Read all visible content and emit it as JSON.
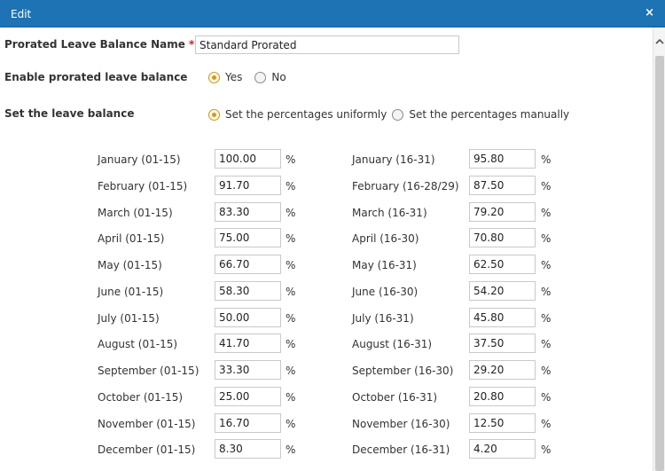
{
  "dialog": {
    "title": "Edit",
    "close_label": "×"
  },
  "form": {
    "name_label": "Prorated Leave Balance Name",
    "required_mark": "*",
    "name_value": "Standard Prorated",
    "enable_label": "Enable prorated leave balance",
    "enable_options": [
      {
        "label": "Yes",
        "checked": true
      },
      {
        "label": "No",
        "checked": false
      }
    ],
    "balance_label": "Set the leave balance",
    "balance_options": [
      {
        "label": "Set the percentages uniformly",
        "checked": true
      },
      {
        "label": "Set the percentages manually",
        "checked": false
      }
    ]
  },
  "percent_sign": "%",
  "periods": [
    {
      "left_label": "January (01-15)",
      "left_value": "100.00",
      "right_label": "January (16-31)",
      "right_value": "95.80"
    },
    {
      "left_label": "February (01-15)",
      "left_value": "91.70",
      "right_label": "February (16-28/29)",
      "right_value": "87.50"
    },
    {
      "left_label": "March (01-15)",
      "left_value": "83.30",
      "right_label": "March (16-31)",
      "right_value": "79.20"
    },
    {
      "left_label": "April (01-15)",
      "left_value": "75.00",
      "right_label": "April (16-30)",
      "right_value": "70.80"
    },
    {
      "left_label": "May (01-15)",
      "left_value": "66.70",
      "right_label": "May (16-31)",
      "right_value": "62.50"
    },
    {
      "left_label": "June (01-15)",
      "left_value": "58.30",
      "right_label": "June (16-30)",
      "right_value": "54.20"
    },
    {
      "left_label": "July (01-15)",
      "left_value": "50.00",
      "right_label": "July (16-31)",
      "right_value": "45.80"
    },
    {
      "left_label": "August (01-15)",
      "left_value": "41.70",
      "right_label": "August (16-31)",
      "right_value": "37.50"
    },
    {
      "left_label": "September (01-15)",
      "left_value": "33.30",
      "right_label": "September (16-30)",
      "right_value": "29.20"
    },
    {
      "left_label": "October (01-15)",
      "left_value": "25.00",
      "right_label": "October (16-31)",
      "right_value": "20.80"
    },
    {
      "left_label": "November (01-15)",
      "left_value": "16.70",
      "right_label": "November (16-30)",
      "right_value": "12.50"
    },
    {
      "left_label": "December (01-15)",
      "left_value": "8.30",
      "right_label": "December (16-31)",
      "right_value": "4.20"
    }
  ],
  "colors": {
    "titlebar": "#1d73b3",
    "radio_checked": "#d09a1e",
    "required": "#cc2222"
  }
}
